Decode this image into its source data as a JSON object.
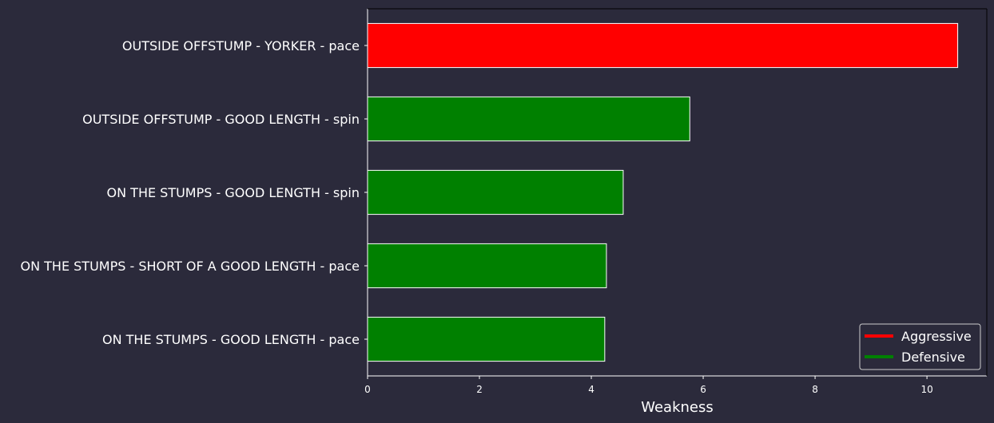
{
  "chart_data": {
    "type": "bar",
    "orientation": "horizontal",
    "categories": [
      "OUTSIDE OFFSTUMP - YORKER - pace",
      "OUTSIDE OFFSTUMP - GOOD LENGTH - spin",
      "ON THE STUMPS - GOOD LENGTH - spin",
      "ON THE STUMPS - SHORT OF A GOOD LENGTH - pace",
      "ON THE STUMPS - GOOD LENGTH - pace"
    ],
    "values": [
      10.55,
      5.76,
      4.57,
      4.27,
      4.24
    ],
    "bar_series": [
      "Aggressive",
      "Defensive",
      "Defensive",
      "Defensive",
      "Defensive"
    ],
    "xlabel": "Weakness",
    "ylabel": "",
    "title": "",
    "xlim": [
      0,
      11.07
    ],
    "xticks": [
      0,
      2,
      4,
      6,
      8,
      10
    ],
    "grid": false,
    "legend": {
      "placement": "bottom-right",
      "entries": [
        {
          "name": "Aggressive",
          "color": "#ff0000"
        },
        {
          "name": "Defensive",
          "color": "#008000"
        }
      ]
    },
    "colors": {
      "Aggressive": "#ff0000",
      "Defensive": "#008000",
      "background": "#2b2a3b",
      "axis": "#ffffff"
    }
  }
}
